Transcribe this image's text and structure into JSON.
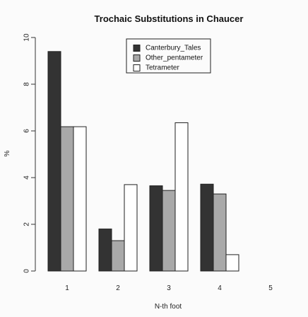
{
  "chart_data": {
    "type": "bar",
    "title": "Trochaic Substitutions in Chaucer",
    "xlabel": "N-th foot",
    "ylabel": "%",
    "categories": [
      "1",
      "2",
      "3",
      "4",
      "5"
    ],
    "ylim": [
      0,
      10
    ],
    "yticks": [
      "0",
      "2",
      "4",
      "6",
      "8",
      "10"
    ],
    "legend_position": "top-center",
    "grid": false,
    "series": [
      {
        "name": "Canterbury_Tales",
        "color": "#333333",
        "values": [
          9.4,
          1.8,
          3.65,
          3.72,
          0
        ]
      },
      {
        "name": "Other_pentameter",
        "color": "#a9a9a9",
        "values": [
          6.18,
          1.3,
          3.45,
          3.3,
          0
        ]
      },
      {
        "name": "Tetrameter",
        "color": "#ffffff",
        "values": [
          6.18,
          3.7,
          6.35,
          0.7,
          0
        ]
      }
    ]
  }
}
